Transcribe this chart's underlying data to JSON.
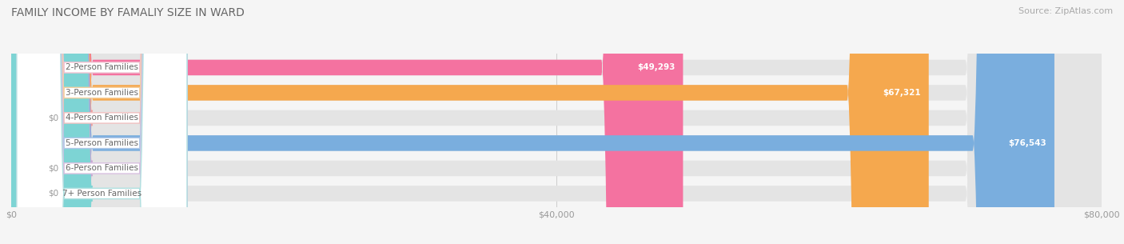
{
  "title": "FAMILY INCOME BY FAMALIY SIZE IN WARD",
  "source": "Source: ZipAtlas.com",
  "categories": [
    "2-Person Families",
    "3-Person Families",
    "4-Person Families",
    "5-Person Families",
    "6-Person Families",
    "7+ Person Families"
  ],
  "values": [
    49293,
    67321,
    0,
    76543,
    0,
    0
  ],
  "bar_colors": [
    "#f472a0",
    "#f5a84e",
    "#f0a0a0",
    "#7aaede",
    "#c9a8d4",
    "#7dd4d4"
  ],
  "label_border_colors": [
    "#f0c0d0",
    "#f5d0a0",
    "#f0c0c0",
    "#b0c8e8",
    "#d8c0e0",
    "#b0e0e0"
  ],
  "value_labels": [
    "$49,293",
    "$67,321",
    "$0",
    "$76,543",
    "$0",
    "$0"
  ],
  "xlim": [
    0,
    80000
  ],
  "xticks": [
    0,
    40000,
    80000
  ],
  "xticklabels": [
    "$0",
    "$40,000",
    "$80,000"
  ],
  "background_color": "#f5f5f5",
  "bar_bg_color": "#e4e4e4",
  "title_fontsize": 10,
  "source_fontsize": 8,
  "label_fontsize": 7.5,
  "value_fontsize": 7.5,
  "bar_height": 0.62,
  "fig_width": 14.06,
  "fig_height": 3.05
}
